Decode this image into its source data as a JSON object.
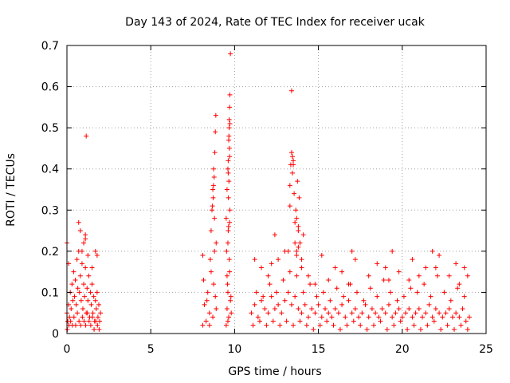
{
  "chart_data": {
    "type": "scatter",
    "title": "Day 143 of 2024, Rate Of TEC Index for receiver ucak",
    "xlabel": "GPS time / hours",
    "ylabel": "ROTI / TECUs",
    "xlim": [
      0,
      25
    ],
    "ylim": [
      0,
      0.7
    ],
    "x_ticks": [
      0,
      5,
      10,
      15,
      20,
      25
    ],
    "x_tick_labels": [
      "0",
      "5",
      "10",
      "15",
      "20",
      "25"
    ],
    "y_ticks": [
      0,
      0.1,
      0.2,
      0.3,
      0.4,
      0.5,
      0.6,
      0.7
    ],
    "y_tick_labels": [
      "0",
      "0.1",
      "0.2",
      "0.3",
      "0.4",
      "0.5",
      "0.6",
      "0.7"
    ],
    "grid": true,
    "marker": "plus",
    "marker_color": "#ff0000",
    "series": [
      {
        "x": [
          0.0,
          0.05,
          0.1,
          0.15,
          0.2,
          0.25,
          0.3,
          0.35,
          0.4,
          0.45,
          0.5,
          0.55,
          0.6,
          0.65,
          0.7,
          0.75,
          0.8,
          0.85,
          0.9,
          0.95,
          1.0,
          1.05,
          1.1,
          1.15,
          1.2,
          1.25,
          1.3,
          1.35,
          1.4,
          1.45,
          1.5,
          1.55,
          1.6,
          1.65,
          1.7,
          1.75,
          1.8,
          1.85,
          1.9,
          1.95,
          2.0,
          0.02,
          0.12,
          0.22,
          0.32,
          0.42,
          0.52,
          0.62,
          0.72,
          0.82,
          0.92,
          1.02,
          1.12,
          1.22,
          1.32,
          1.42,
          1.52,
          1.62,
          1.72,
          1.82,
          1.92,
          0.0,
          0.1,
          0.7,
          0.8,
          0.9,
          1.0,
          1.1,
          1.15,
          1.25,
          1.5,
          1.7,
          1.8,
          1.1,
          8.1,
          8.2,
          8.3,
          8.4,
          8.5,
          8.6,
          8.7,
          8.8,
          8.9,
          8.15,
          8.35,
          8.55,
          8.75,
          8.85,
          8.1,
          8.5,
          8.6,
          8.65,
          8.7,
          8.75,
          8.8,
          8.82,
          8.85,
          8.88,
          8.9,
          8.72,
          8.78,
          8.68,
          8.74,
          9.5,
          9.55,
          9.6,
          9.65,
          9.7,
          9.75,
          9.8,
          9.52,
          9.58,
          9.62,
          9.68,
          9.72,
          9.78,
          9.5,
          9.55,
          9.6,
          9.62,
          9.65,
          9.68,
          9.7,
          9.72,
          9.75,
          9.6,
          9.63,
          9.66,
          9.69,
          9.72,
          9.64,
          9.7,
          9.62,
          9.66,
          9.68,
          9.7,
          9.55,
          9.6,
          11.0,
          11.2,
          11.4,
          11.6,
          11.8,
          12.0,
          12.2,
          12.4,
          12.6,
          12.8,
          13.0,
          13.2,
          13.4,
          13.6,
          13.8,
          14.0,
          14.2,
          14.4,
          14.6,
          14.8,
          15.0,
          15.2,
          15.4,
          15.6,
          15.8,
          16.0,
          16.2,
          16.4,
          16.6,
          16.8,
          17.0,
          17.2,
          17.4,
          17.6,
          17.8,
          18.0,
          18.2,
          18.4,
          18.6,
          18.8,
          19.0,
          19.2,
          19.4,
          19.6,
          19.8,
          20.0,
          20.2,
          20.4,
          20.6,
          20.8,
          21.0,
          21.2,
          21.4,
          21.6,
          21.8,
          22.0,
          22.2,
          22.4,
          22.6,
          22.8,
          23.0,
          23.2,
          23.4,
          23.6,
          23.8,
          24.0,
          11.1,
          11.5,
          11.9,
          12.3,
          12.7,
          13.1,
          13.5,
          13.9,
          14.3,
          14.7,
          15.1,
          15.5,
          15.9,
          16.3,
          16.7,
          17.1,
          17.5,
          17.9,
          18.3,
          18.7,
          19.1,
          19.5,
          19.9,
          20.3,
          20.7,
          21.1,
          21.5,
          21.9,
          22.3,
          22.7,
          23.1,
          23.5,
          23.9,
          11.3,
          11.7,
          12.1,
          12.5,
          12.9,
          13.3,
          13.7,
          14.1,
          14.5,
          14.9,
          15.3,
          15.7,
          16.1,
          16.5,
          16.9,
          17.3,
          17.7,
          18.1,
          18.5,
          18.9,
          19.3,
          19.7,
          20.1,
          20.5,
          20.9,
          21.3,
          21.7,
          22.1,
          22.5,
          22.9,
          23.3,
          23.7,
          11.2,
          11.6,
          12.0,
          12.2,
          12.6,
          13.0,
          13.3,
          13.4,
          13.5,
          13.6,
          13.7,
          13.8,
          14.0,
          14.4,
          14.8,
          15.2,
          15.6,
          16.0,
          16.4,
          16.8,
          17.0,
          17.2,
          18.0,
          18.5,
          19.0,
          19.2,
          19.4,
          19.8,
          20.4,
          20.6,
          21.0,
          21.4,
          21.8,
          22.0,
          22.2,
          22.8,
          23.2,
          23.4,
          23.7,
          23.9,
          12.4,
          13.2,
          13.3,
          13.4,
          13.45,
          13.5,
          13.55,
          13.65,
          13.7,
          13.75,
          13.8,
          13.85,
          13.9,
          14.0,
          14.1,
          13.6,
          13.7,
          13.8,
          13.35,
          13.45
        ],
        "y": [
          0.05,
          0.03,
          0.07,
          0.04,
          0.1,
          0.06,
          0.12,
          0.08,
          0.15,
          0.09,
          0.13,
          0.07,
          0.18,
          0.11,
          0.2,
          0.1,
          0.14,
          0.08,
          0.17,
          0.06,
          0.12,
          0.09,
          0.16,
          0.05,
          0.11,
          0.08,
          0.14,
          0.04,
          0.1,
          0.07,
          0.12,
          0.05,
          0.09,
          0.03,
          0.08,
          0.06,
          0.1,
          0.04,
          0.07,
          0.03,
          0.05,
          0.01,
          0.02,
          0.03,
          0.02,
          0.04,
          0.02,
          0.05,
          0.03,
          0.02,
          0.04,
          0.03,
          0.02,
          0.05,
          0.03,
          0.02,
          0.04,
          0.01,
          0.03,
          0.02,
          0.01,
          0.22,
          0.17,
          0.27,
          0.25,
          0.2,
          0.22,
          0.24,
          0.48,
          0.19,
          0.16,
          0.2,
          0.19,
          0.23,
          0.02,
          0.07,
          0.03,
          0.1,
          0.05,
          0.15,
          0.04,
          0.2,
          0.06,
          0.13,
          0.08,
          0.18,
          0.12,
          0.09,
          0.19,
          0.02,
          0.25,
          0.3,
          0.35,
          0.4,
          0.28,
          0.44,
          0.49,
          0.53,
          0.22,
          0.33,
          0.38,
          0.31,
          0.36,
          0.02,
          0.06,
          0.1,
          0.04,
          0.15,
          0.08,
          0.05,
          0.2,
          0.12,
          0.25,
          0.18,
          0.3,
          0.09,
          0.28,
          0.35,
          0.4,
          0.42,
          0.47,
          0.5,
          0.55,
          0.58,
          0.68,
          0.22,
          0.33,
          0.37,
          0.45,
          0.51,
          0.26,
          0.43,
          0.39,
          0.48,
          0.52,
          0.27,
          0.14,
          0.03,
          0.05,
          0.07,
          0.04,
          0.08,
          0.06,
          0.05,
          0.09,
          0.06,
          0.07,
          0.05,
          0.08,
          0.1,
          0.07,
          0.09,
          0.06,
          0.05,
          0.07,
          0.04,
          0.06,
          0.05,
          0.07,
          0.04,
          0.06,
          0.05,
          0.04,
          0.06,
          0.05,
          0.07,
          0.04,
          0.08,
          0.05,
          0.06,
          0.04,
          0.05,
          0.07,
          0.04,
          0.06,
          0.05,
          0.04,
          0.06,
          0.05,
          0.07,
          0.04,
          0.05,
          0.06,
          0.04,
          0.05,
          0.06,
          0.04,
          0.05,
          0.06,
          0.04,
          0.05,
          0.07,
          0.04,
          0.06,
          0.05,
          0.04,
          0.05,
          0.06,
          0.04,
          0.05,
          0.04,
          0.06,
          0.03,
          0.04,
          0.02,
          0.03,
          0.02,
          0.03,
          0.02,
          0.03,
          0.02,
          0.03,
          0.02,
          0.01,
          0.02,
          0.03,
          0.02,
          0.01,
          0.02,
          0.03,
          0.02,
          0.01,
          0.02,
          0.03,
          0.01,
          0.02,
          0.03,
          0.01,
          0.02,
          0.01,
          0.02,
          0.03,
          0.01,
          0.02,
          0.01,
          0.02,
          0.01,
          0.1,
          0.09,
          0.12,
          0.1,
          0.13,
          0.15,
          0.14,
          0.1,
          0.12,
          0.09,
          0.1,
          0.08,
          0.11,
          0.09,
          0.12,
          0.1,
          0.08,
          0.11,
          0.09,
          0.13,
          0.1,
          0.08,
          0.09,
          0.11,
          0.1,
          0.12,
          0.09,
          0.14,
          0.1,
          0.08,
          0.11,
          0.09,
          0.18,
          0.16,
          0.14,
          0.17,
          0.18,
          0.2,
          0.31,
          0.59,
          0.41,
          0.22,
          0.19,
          0.25,
          0.16,
          0.14,
          0.12,
          0.19,
          0.13,
          0.16,
          0.15,
          0.12,
          0.2,
          0.18,
          0.14,
          0.17,
          0.16,
          0.13,
          0.2,
          0.15,
          0.13,
          0.18,
          0.14,
          0.16,
          0.2,
          0.16,
          0.19,
          0.14,
          0.17,
          0.12,
          0.16,
          0.14,
          0.24,
          0.2,
          0.36,
          0.44,
          0.43,
          0.42,
          0.34,
          0.3,
          0.28,
          0.37,
          0.26,
          0.33,
          0.22,
          0.18,
          0.24,
          0.27,
          0.2,
          0.21,
          0.41,
          0.39
        ]
      }
    ]
  }
}
